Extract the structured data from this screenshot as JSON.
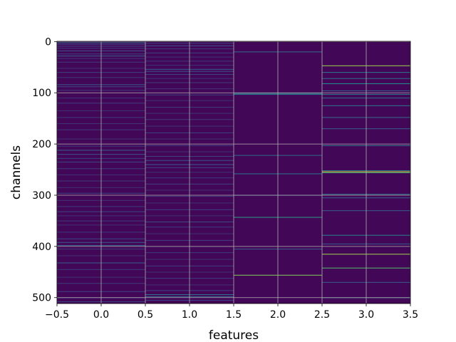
{
  "chart_data": {
    "type": "heatmap",
    "title": "",
    "xlabel": "features",
    "ylabel": "channels",
    "xlim": [
      -0.5,
      3.5
    ],
    "ylim": [
      511.5,
      -0.5
    ],
    "x_ticks": [
      -0.5,
      0.0,
      0.5,
      1.0,
      1.5,
      2.0,
      2.5,
      3.0,
      3.5
    ],
    "x_tick_labels": [
      "−0.5",
      "0.0",
      "0.5",
      "1.0",
      "1.5",
      "2.0",
      "2.5",
      "3.0",
      "3.5"
    ],
    "y_ticks": [
      0,
      100,
      200,
      300,
      400,
      500
    ],
    "y_tick_labels": [
      "0",
      "100",
      "200",
      "300",
      "400",
      "500"
    ],
    "grid": true,
    "colormap": "viridis",
    "rows": 512,
    "columns": [
      0,
      1,
      2,
      3
    ],
    "background_value": 0.02,
    "highlights": [
      {
        "col": 0,
        "rows": [
          [
            2,
            0.35
          ],
          [
            5,
            0.22
          ],
          [
            9,
            0.2
          ],
          [
            13,
            0.18
          ],
          [
            18,
            0.25
          ],
          [
            24,
            0.2
          ],
          [
            28,
            0.3
          ],
          [
            33,
            0.15
          ],
          [
            40,
            0.18
          ],
          [
            52,
            0.15
          ],
          [
            60,
            0.2
          ],
          [
            70,
            0.18
          ],
          [
            84,
            0.28
          ],
          [
            88,
            0.22
          ],
          [
            95,
            0.18
          ],
          [
            110,
            0.15
          ],
          [
            120,
            0.18
          ],
          [
            135,
            0.15
          ],
          [
            148,
            0.18
          ],
          [
            160,
            0.15
          ],
          [
            172,
            0.18
          ],
          [
            190,
            0.15
          ],
          [
            204,
            0.18
          ],
          [
            212,
            0.3
          ],
          [
            220,
            0.25
          ],
          [
            228,
            0.2
          ],
          [
            235,
            0.22
          ],
          [
            248,
            0.18
          ],
          [
            260,
            0.15
          ],
          [
            272,
            0.18
          ],
          [
            285,
            0.15
          ],
          [
            296,
            0.2
          ],
          [
            310,
            0.15
          ],
          [
            322,
            0.18
          ],
          [
            332,
            0.22
          ],
          [
            340,
            0.15
          ],
          [
            350,
            0.18
          ],
          [
            358,
            0.15
          ],
          [
            372,
            0.18
          ],
          [
            385,
            0.22
          ],
          [
            392,
            0.28
          ],
          [
            398,
            0.32
          ],
          [
            405,
            0.18
          ],
          [
            418,
            0.15
          ],
          [
            432,
            0.3
          ],
          [
            445,
            0.18
          ],
          [
            460,
            0.15
          ],
          [
            472,
            0.18
          ],
          [
            488,
            0.2
          ],
          [
            500,
            0.25
          ],
          [
            508,
            0.22
          ]
        ]
      },
      {
        "col": 1,
        "rows": [
          [
            3,
            0.2
          ],
          [
            8,
            0.25
          ],
          [
            14,
            0.18
          ],
          [
            22,
            0.2
          ],
          [
            30,
            0.15
          ],
          [
            38,
            0.18
          ],
          [
            46,
            0.15
          ],
          [
            54,
            0.3
          ],
          [
            58,
            0.25
          ],
          [
            64,
            0.2
          ],
          [
            72,
            0.15
          ],
          [
            80,
            0.18
          ],
          [
            92,
            0.15
          ],
          [
            104,
            0.2
          ],
          [
            115,
            0.15
          ],
          [
            128,
            0.18
          ],
          [
            140,
            0.15
          ],
          [
            152,
            0.18
          ],
          [
            165,
            0.15
          ],
          [
            178,
            0.2
          ],
          [
            190,
            0.15
          ],
          [
            203,
            0.18
          ],
          [
            215,
            0.15
          ],
          [
            224,
            0.2
          ],
          [
            232,
            0.25
          ],
          [
            240,
            0.28
          ],
          [
            246,
            0.2
          ],
          [
            255,
            0.15
          ],
          [
            266,
            0.18
          ],
          [
            278,
            0.2
          ],
          [
            290,
            0.15
          ],
          [
            302,
            0.18
          ],
          [
            315,
            0.15
          ],
          [
            328,
            0.2
          ],
          [
            340,
            0.15
          ],
          [
            352,
            0.22
          ],
          [
            362,
            0.18
          ],
          [
            375,
            0.15
          ],
          [
            388,
            0.2
          ],
          [
            400,
            0.15
          ],
          [
            412,
            0.18
          ],
          [
            425,
            0.15
          ],
          [
            438,
            0.2
          ],
          [
            450,
            0.15
          ],
          [
            462,
            0.18
          ],
          [
            475,
            0.15
          ],
          [
            486,
            0.2
          ],
          [
            494,
            0.4
          ],
          [
            498,
            0.35
          ],
          [
            505,
            0.2
          ]
        ]
      },
      {
        "col": 2,
        "rows": [
          [
            20,
            0.35
          ],
          [
            101,
            0.45
          ],
          [
            103,
            0.4
          ],
          [
            222,
            0.35
          ],
          [
            258,
            0.4
          ],
          [
            300,
            0.3
          ],
          [
            343,
            0.55
          ],
          [
            405,
            0.3
          ],
          [
            456,
            0.8
          ]
        ]
      },
      {
        "col": 3,
        "rows": [
          [
            47,
            0.85
          ],
          [
            60,
            0.4
          ],
          [
            72,
            0.35
          ],
          [
            82,
            0.5
          ],
          [
            96,
            0.3
          ],
          [
            103,
            0.4
          ],
          [
            110,
            0.35
          ],
          [
            125,
            0.4
          ],
          [
            148,
            0.35
          ],
          [
            170,
            0.3
          ],
          [
            203,
            0.4
          ],
          [
            252,
            0.45
          ],
          [
            254,
            0.95
          ],
          [
            256,
            0.6
          ],
          [
            298,
            0.4
          ],
          [
            305,
            0.3
          ],
          [
            330,
            0.3
          ],
          [
            378,
            0.45
          ],
          [
            395,
            0.3
          ],
          [
            415,
            0.85
          ],
          [
            442,
            0.7
          ],
          [
            470,
            0.3
          ],
          [
            500,
            0.4
          ]
        ]
      }
    ]
  }
}
